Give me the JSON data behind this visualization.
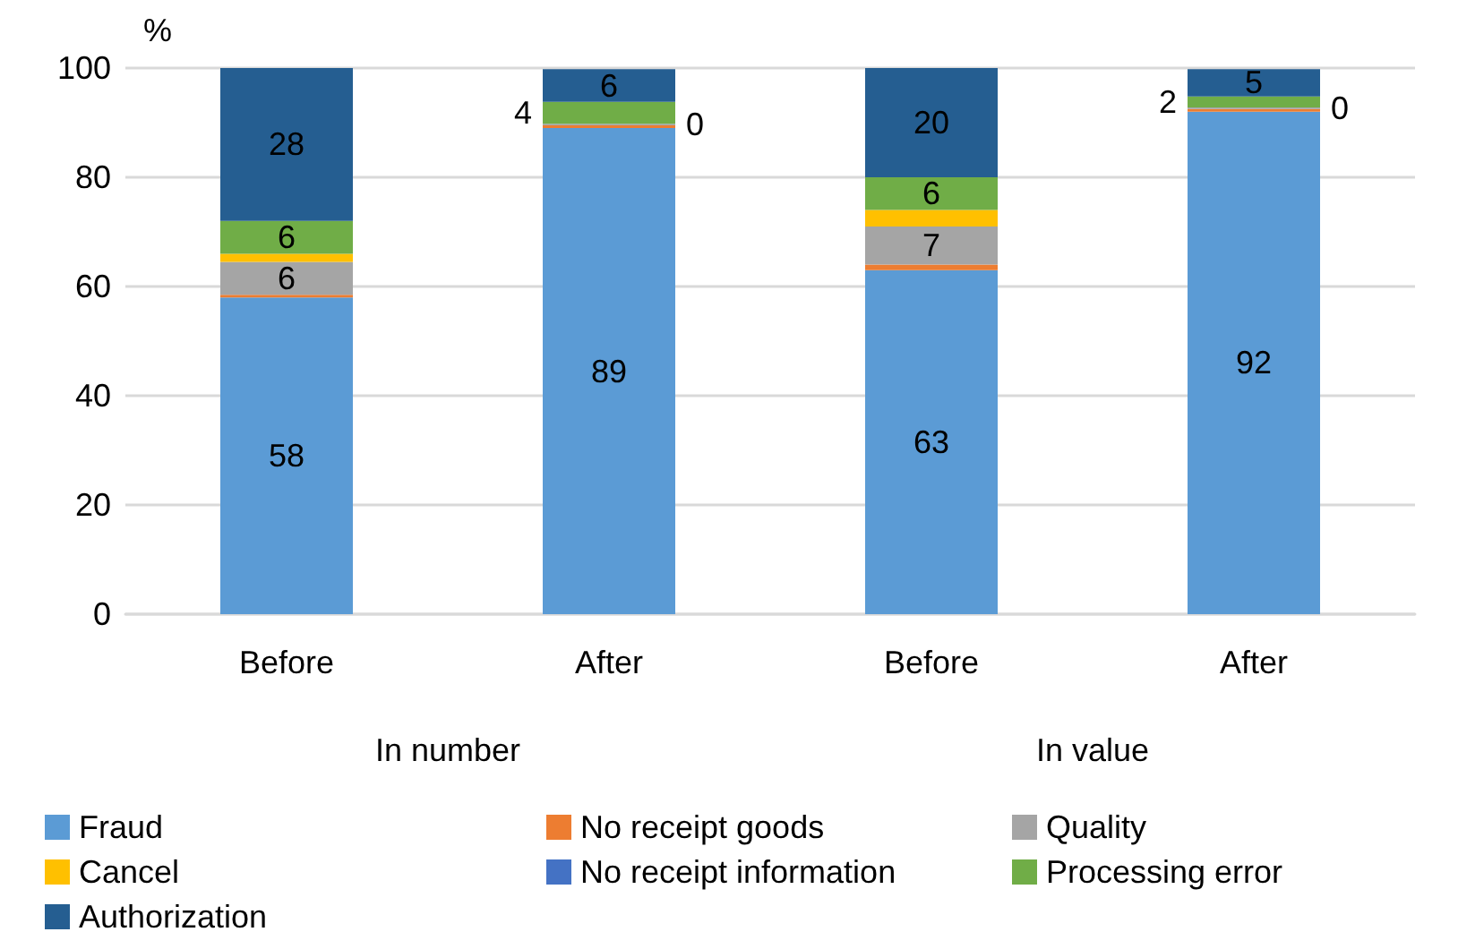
{
  "chart_data": {
    "type": "bar",
    "stacked": true,
    "ylabel": "%",
    "categories": [
      "Before",
      "After",
      "Before",
      "After"
    ],
    "annotations": [
      "In number",
      "In value"
    ],
    "ylim": [
      0,
      100
    ],
    "yticks": [
      0,
      20,
      40,
      60,
      80,
      100
    ],
    "grid": "y",
    "legend": "bottom",
    "series": [
      {
        "name": "Fraud",
        "color": "#5b9bd5",
        "values": [
          58,
          89,
          63,
          92
        ],
        "value_labels": [
          "58",
          "89",
          "63",
          "92"
        ]
      },
      {
        "name": "No receipt goods",
        "color": "#ed7d31",
        "values": [
          0.5,
          0.5,
          1,
          0.5
        ],
        "value_labels": [
          null,
          null,
          null,
          null
        ]
      },
      {
        "name": "Quality",
        "color": "#a5a5a5",
        "values": [
          6,
          0.3,
          7,
          0.3
        ],
        "value_labels": [
          "6",
          "0",
          "7",
          "0"
        ]
      },
      {
        "name": "Cancel",
        "color": "#ffc000",
        "values": [
          1.5,
          0,
          3,
          0
        ],
        "value_labels": [
          null,
          null,
          null,
          null
        ]
      },
      {
        "name": "No receipt information",
        "color": "#4472c4",
        "values": [
          0,
          0,
          0,
          0
        ],
        "value_labels": [
          null,
          null,
          null,
          null
        ]
      },
      {
        "name": "Processing error",
        "color": "#70ad47",
        "values": [
          6,
          4,
          6,
          2
        ],
        "value_labels": [
          "6",
          "4",
          "6",
          "2"
        ]
      },
      {
        "name": "Authorization",
        "color": "#255e91",
        "values": [
          28,
          6,
          20,
          5
        ],
        "value_labels": [
          "28",
          "6",
          "20",
          "5"
        ]
      }
    ]
  }
}
